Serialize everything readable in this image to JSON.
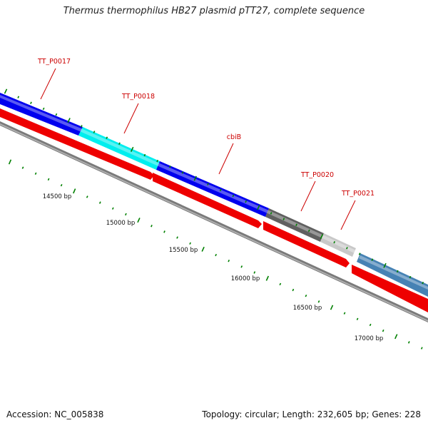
{
  "title": "Thermus thermophilus HB27 plasmid pTT27, complete sequence",
  "footer": {
    "accession": "Accession: NC_005838",
    "summary": "Topology: circular; Length: 232,605 bp; Genes: 228"
  },
  "genes": [
    {
      "label": "TT_P0017",
      "color": "#0000ee"
    },
    {
      "label": "TT_P0018",
      "color": "#00eeee"
    },
    {
      "label": "cbiB",
      "color": "#0000ee"
    },
    {
      "label": "TT_P0020",
      "color": "#606060"
    },
    {
      "label": "TT_P0021",
      "color": "#c8c8c8"
    },
    {
      "label": "",
      "color": "#4682b4"
    }
  ],
  "position_labels": [
    "14500 bp",
    "15000 bp",
    "15500 bp",
    "16000 bp",
    "16500 bp",
    "17000 bp"
  ],
  "colors": {
    "forward_strand_blue": "#0000ee",
    "reverse_strand": "#ee0000",
    "backbone": "#808080",
    "tick": "#008000",
    "label": "#cc0000"
  }
}
